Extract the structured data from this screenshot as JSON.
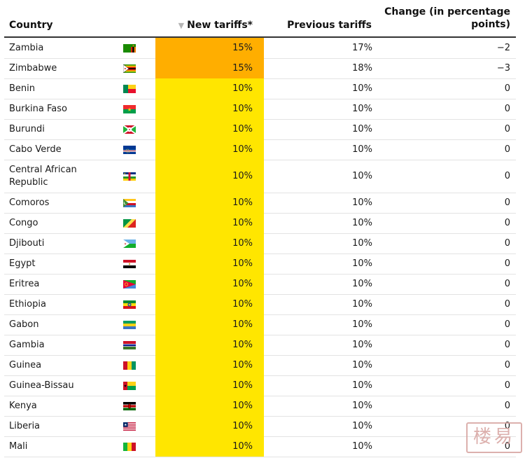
{
  "table": {
    "headers": {
      "country": "Country",
      "new_tariffs": "New tariffs*",
      "previous_tariffs": "Previous tariffs",
      "change": "Change (in percentage points)"
    },
    "sort_indicator": "▼",
    "rows": [
      {
        "country": "Zambia",
        "flag": "zambia-flag",
        "new": "15%",
        "previous": "17%",
        "change": "−2"
      },
      {
        "country": "Zimbabwe",
        "flag": "zimbabwe-flag",
        "new": "15%",
        "previous": "18%",
        "change": "−3"
      },
      {
        "country": "Benin",
        "flag": "benin-flag",
        "new": "10%",
        "previous": "10%",
        "change": "0"
      },
      {
        "country": "Burkina Faso",
        "flag": "burkina-faso-flag",
        "new": "10%",
        "previous": "10%",
        "change": "0"
      },
      {
        "country": "Burundi",
        "flag": "burundi-flag",
        "new": "10%",
        "previous": "10%",
        "change": "0"
      },
      {
        "country": "Cabo Verde",
        "flag": "cabo-verde-flag",
        "new": "10%",
        "previous": "10%",
        "change": "0"
      },
      {
        "country": "Central African Republic",
        "flag": "central-african-republic-flag",
        "new": "10%",
        "previous": "10%",
        "change": "0"
      },
      {
        "country": "Comoros",
        "flag": "comoros-flag",
        "new": "10%",
        "previous": "10%",
        "change": "0"
      },
      {
        "country": "Congo",
        "flag": "congo-flag",
        "new": "10%",
        "previous": "10%",
        "change": "0"
      },
      {
        "country": "Djibouti",
        "flag": "djibouti-flag",
        "new": "10%",
        "previous": "10%",
        "change": "0"
      },
      {
        "country": "Egypt",
        "flag": "egypt-flag",
        "new": "10%",
        "previous": "10%",
        "change": "0"
      },
      {
        "country": "Eritrea",
        "flag": "eritrea-flag",
        "new": "10%",
        "previous": "10%",
        "change": "0"
      },
      {
        "country": "Ethiopia",
        "flag": "ethiopia-flag",
        "new": "10%",
        "previous": "10%",
        "change": "0"
      },
      {
        "country": "Gabon",
        "flag": "gabon-flag",
        "new": "10%",
        "previous": "10%",
        "change": "0"
      },
      {
        "country": "Gambia",
        "flag": "gambia-flag",
        "new": "10%",
        "previous": "10%",
        "change": "0"
      },
      {
        "country": "Guinea",
        "flag": "guinea-flag",
        "new": "10%",
        "previous": "10%",
        "change": "0"
      },
      {
        "country": "Guinea-Bissau",
        "flag": "guinea-bissau-flag",
        "new": "10%",
        "previous": "10%",
        "change": "0"
      },
      {
        "country": "Kenya",
        "flag": "kenya-flag",
        "new": "10%",
        "previous": "10%",
        "change": "0"
      },
      {
        "country": "Liberia",
        "flag": "liberia-flag",
        "new": "10%",
        "previous": "10%",
        "change": "0"
      },
      {
        "country": "Mali",
        "flag": "mali-flag",
        "new": "10%",
        "previous": "10%",
        "change": "0"
      }
    ]
  },
  "colors": {
    "tariff_15": "#ffae00",
    "tariff_10": "#ffe600"
  },
  "watermark": {
    "text": "楼易",
    "icon": "watermark-stamp-icon"
  }
}
